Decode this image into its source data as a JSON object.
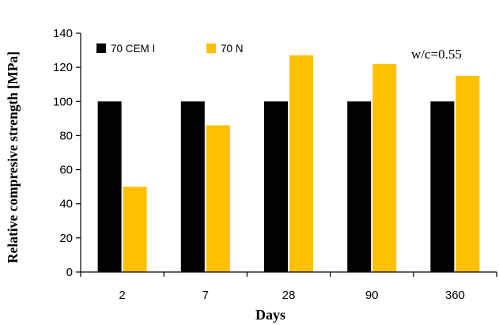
{
  "chart_data": {
    "type": "bar",
    "categories": [
      "2",
      "7",
      "28",
      "90",
      "360"
    ],
    "series": [
      {
        "name": "70 CEM I",
        "values": [
          100,
          100,
          100,
          100,
          100
        ],
        "color": "#000000"
      },
      {
        "name": "70 N",
        "values": [
          50,
          86,
          127,
          122,
          115
        ],
        "color": "#FFC000"
      }
    ],
    "xlabel": "Days",
    "ylabel": "Relative compresive strength [MPa]",
    "ylim": [
      0,
      140
    ],
    "yticks": [
      0,
      20,
      40,
      60,
      80,
      100,
      120,
      140
    ],
    "annotation": "w/c=0.55",
    "grid": false,
    "legend_position": "top-left"
  }
}
